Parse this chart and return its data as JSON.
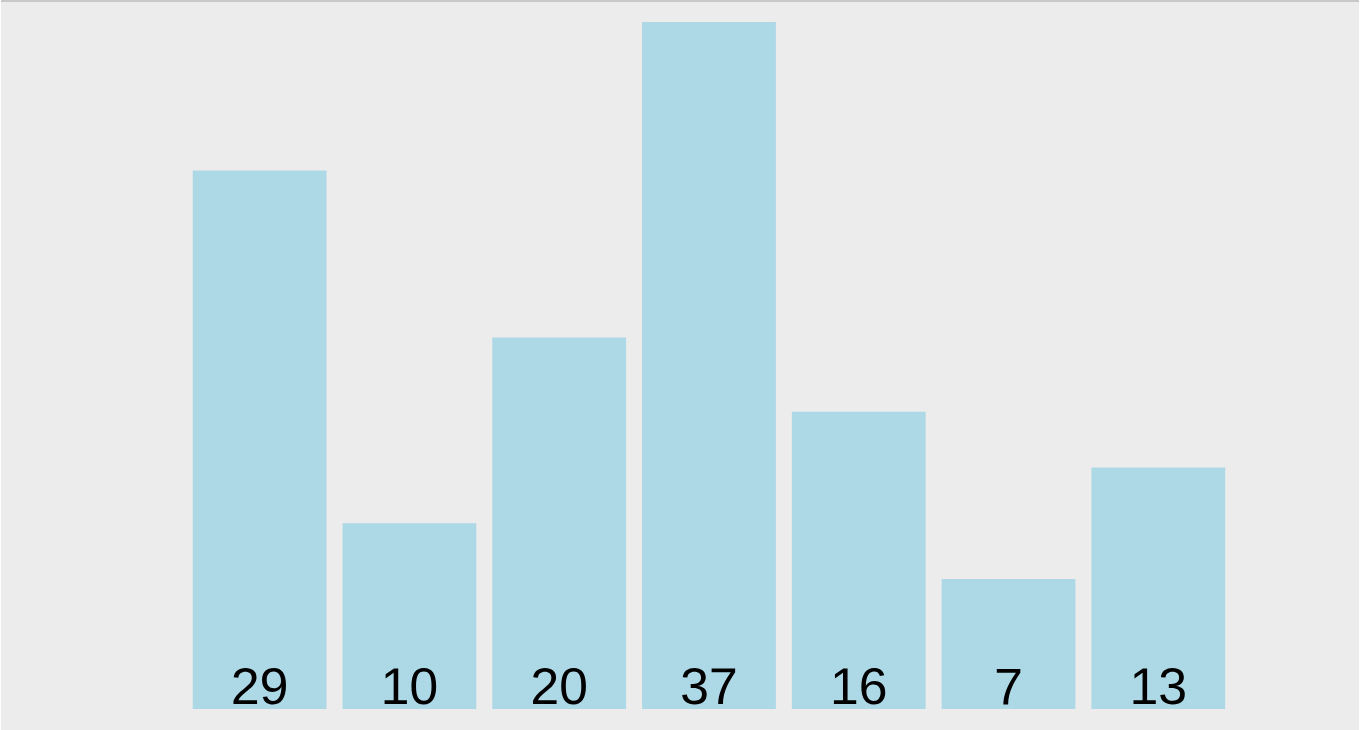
{
  "chart_data": {
    "type": "bar",
    "categories": [
      null,
      null,
      null,
      null,
      null,
      null,
      null
    ],
    "values": [
      29,
      10,
      20,
      37,
      16,
      7,
      13
    ],
    "color": "#add8e6",
    "data_labels": true
  }
}
